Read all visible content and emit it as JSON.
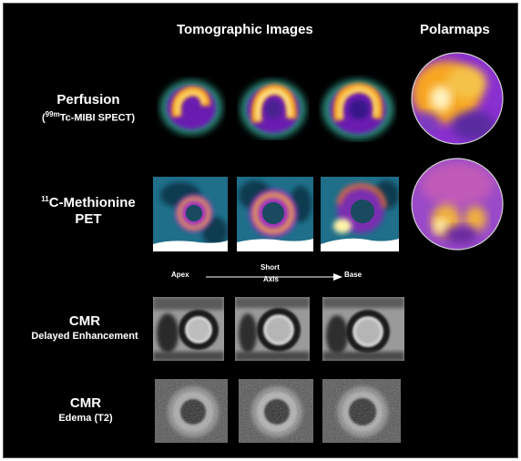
{
  "headers": {
    "tomographic": "Tomographic Images",
    "polarmaps": "Polarmaps"
  },
  "rows": {
    "perfusion": {
      "title": "Perfusion",
      "sub_sup": "99m",
      "sub_text": "Tc-MIBI SPECT)",
      "sub_open": "("
    },
    "methionine": {
      "sup": "11",
      "line1": "C-Methionine",
      "line2": "PET"
    },
    "cmr_de": {
      "title": "CMR",
      "sub": "Delayed Enhancement"
    },
    "cmr_t2": {
      "title": "CMR",
      "sub": "Edema (T2)"
    }
  },
  "axis": {
    "apex": "Apex",
    "short_line1": "Short",
    "short_line2": "Axis",
    "base": "Base"
  },
  "colors": {
    "background": "#000000",
    "text": "#ffffff",
    "perfusion_hot": "#f7a623",
    "perfusion_cold": "#6a1fb0",
    "pet_hot": "#f0b040",
    "pet_mid": "#9a2fc0",
    "pet_cold": "#1f6f8a"
  }
}
